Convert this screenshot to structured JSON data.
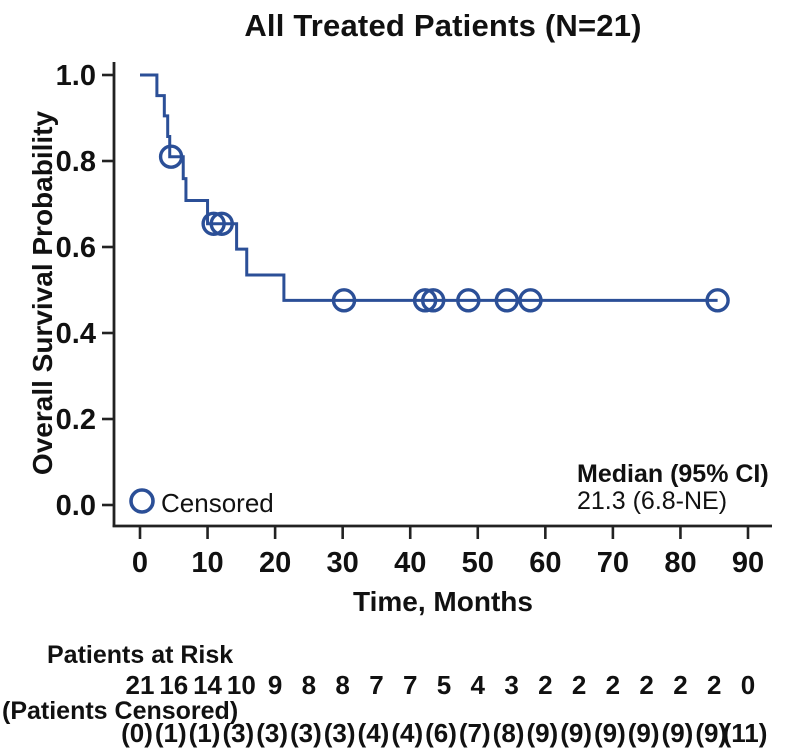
{
  "chart_data": {
    "type": "line",
    "subtype": "kaplan-meier-step",
    "title": "All Treated Patients (N=21)",
    "xlabel": "Time, Months",
    "ylabel": "Overall Survival Probability",
    "xlim": [
      0,
      93
    ],
    "ylim": [
      0.0,
      1.0
    ],
    "grid": false,
    "x_ticks": [
      0,
      10,
      20,
      30,
      40,
      50,
      60,
      70,
      80,
      90
    ],
    "y_tick_values": [
      1.0,
      0.8,
      0.6,
      0.4,
      0.2,
      0.0
    ],
    "y_tick_labels": [
      "1.0",
      "0.8",
      "0.6",
      "0.4",
      "0.2",
      "0.0"
    ],
    "curve_color": "#2b4f97",
    "axis_color": "#222222",
    "text_color": "#111111",
    "steps": [
      {
        "t": 0.0,
        "s": 1.0
      },
      {
        "t": 2.5,
        "s": 0.952
      },
      {
        "t": 3.6,
        "s": 0.905
      },
      {
        "t": 4.1,
        "s": 0.857
      },
      {
        "t": 4.4,
        "s": 0.81
      },
      {
        "t": 6.4,
        "s": 0.759
      },
      {
        "t": 6.8,
        "s": 0.708
      },
      {
        "t": 10.0,
        "s": 0.654
      },
      {
        "t": 14.3,
        "s": 0.595
      },
      {
        "t": 15.8,
        "s": 0.535
      },
      {
        "t": 21.3,
        "s": 0.476
      }
    ],
    "end_time": 85.5,
    "censor_points": [
      {
        "t": 4.6,
        "s": 0.81
      },
      {
        "t": 10.9,
        "s": 0.654
      },
      {
        "t": 12.1,
        "s": 0.654
      },
      {
        "t": 30.2,
        "s": 0.476
      },
      {
        "t": 42.2,
        "s": 0.476
      },
      {
        "t": 43.4,
        "s": 0.476
      },
      {
        "t": 48.6,
        "s": 0.476
      },
      {
        "t": 54.3,
        "s": 0.476
      },
      {
        "t": 57.8,
        "s": 0.476
      },
      {
        "t": 85.5,
        "s": 0.476
      }
    ],
    "legend": {
      "marker": "circle",
      "label": "Censored",
      "position": "bottom-left-inside"
    },
    "annotation": {
      "line1": "Median (95% CI)",
      "line2": "21.3 (6.8-NE)"
    },
    "risk_table": {
      "risk_label": "Patients at Risk",
      "times": [
        0,
        5,
        10,
        15,
        20,
        25,
        30,
        35,
        40,
        45,
        50,
        55,
        60,
        65,
        70,
        75,
        80,
        85,
        90
      ],
      "risk_values": [
        "21",
        "16",
        "14",
        "10",
        "9",
        "8",
        "8",
        "7",
        "7",
        "5",
        "4",
        "3",
        "2",
        "2",
        "2",
        "2",
        "2",
        "2",
        "0"
      ],
      "censored_label": "(Patients Censored)",
      "censored_values": [
        "(0)",
        "(1)",
        "(1)",
        "(3)",
        "(3)",
        "(3)",
        "(3)",
        "(4)",
        "(4)",
        "(6)",
        "(7)",
        "(8)",
        "(9)",
        "(9)",
        "(9)",
        "(9)",
        "(9)",
        "(9)",
        "(11)"
      ]
    }
  }
}
